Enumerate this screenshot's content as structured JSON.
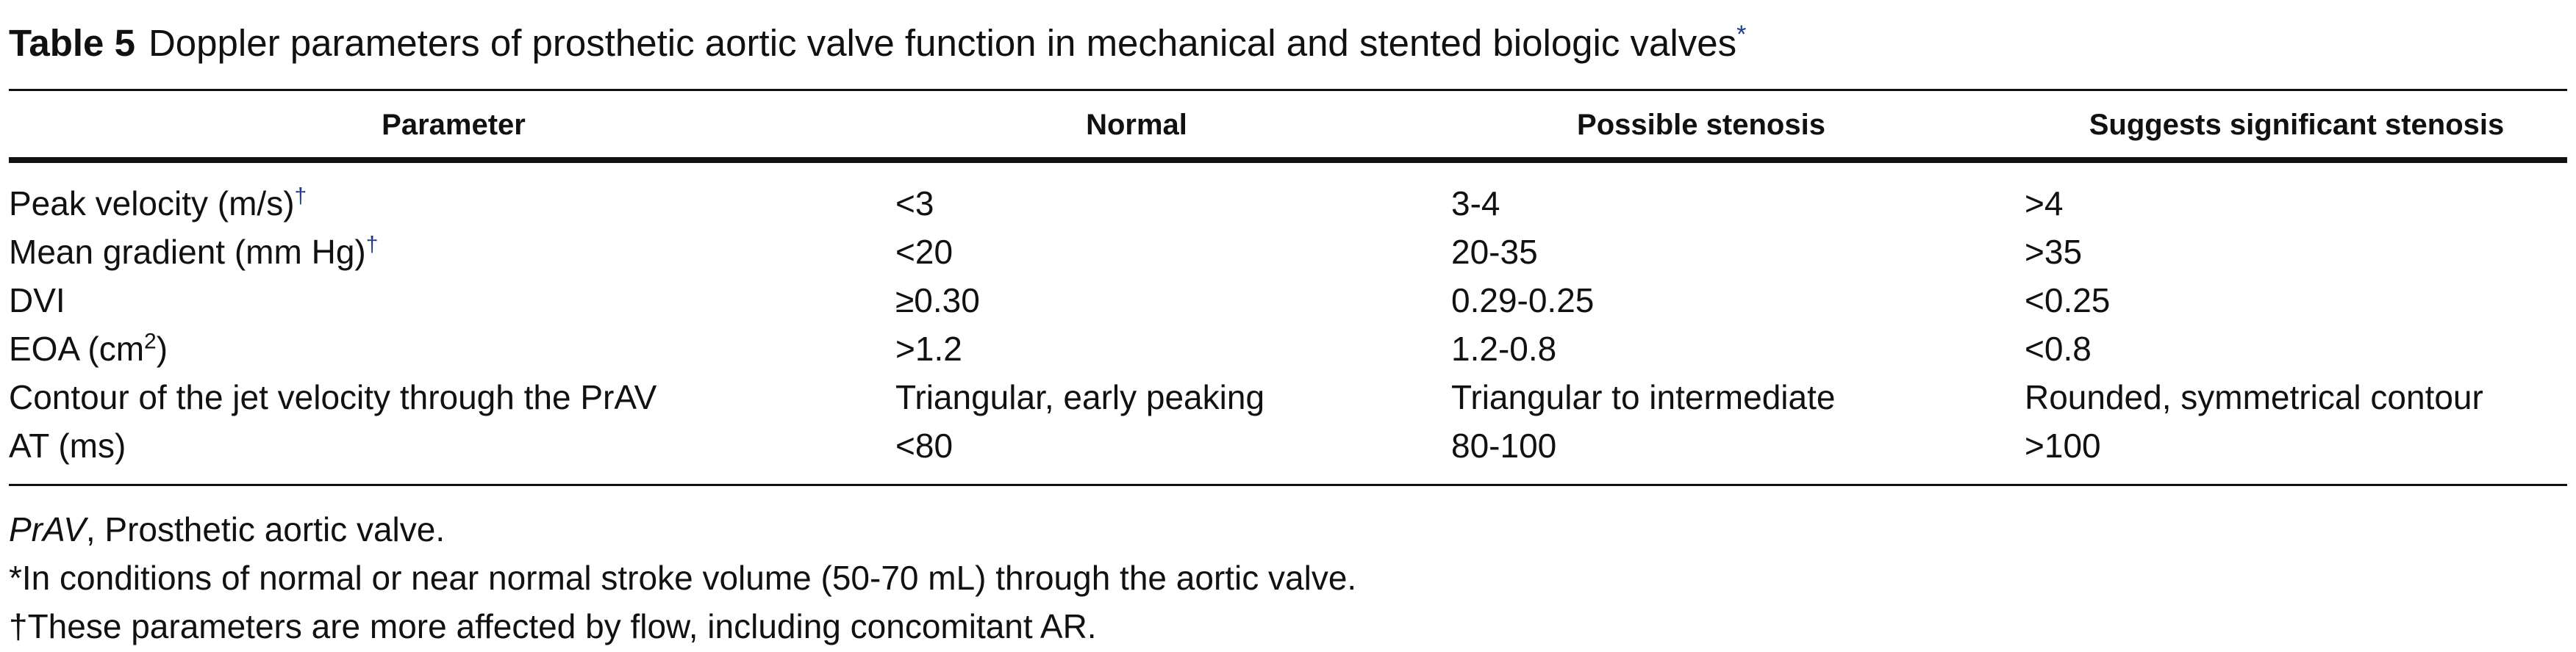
{
  "caption": {
    "label": "Table 5",
    "title": "Doppler parameters of prosthetic aortic valve function in mechanical and stented biologic valves",
    "marker": "*"
  },
  "table": {
    "headers": [
      "Parameter",
      "Normal",
      "Possible stenosis",
      "Suggests significant stenosis"
    ],
    "rows": [
      {
        "parameter": "Peak velocity (m/s)",
        "sup": "†",
        "normal": "<3",
        "possible": "3-4",
        "significant": ">4"
      },
      {
        "parameter": "Mean gradient (mm Hg)",
        "sup": "†",
        "normal": "<20",
        "possible": "20-35",
        "significant": ">35"
      },
      {
        "parameter": "DVI",
        "normal": "≥0.30",
        "possible": "0.29-0.25",
        "significant": "<0.25"
      },
      {
        "parameter_pre": "EOA (cm",
        "parameter_sup": "2",
        "parameter_post": ")",
        "normal": ">1.2",
        "possible": "1.2-0.8",
        "significant": "<0.8"
      },
      {
        "parameter": "Contour of the jet velocity through the PrAV",
        "normal": "Triangular, early peaking",
        "possible": "Triangular to intermediate",
        "significant": "Rounded, symmetrical contour"
      },
      {
        "parameter": "AT (ms)",
        "normal": "<80",
        "possible": "80-100",
        "significant": ">100"
      }
    ]
  },
  "footnotes": {
    "abbr_term": "PrAV",
    "abbr_def": ", Prosthetic aortic valve.",
    "star": "*In conditions of normal or near normal stroke volume (50-70 mL) through the aortic valve.",
    "dagger": "†These parameters are more affected by flow, including concomitant AR."
  }
}
